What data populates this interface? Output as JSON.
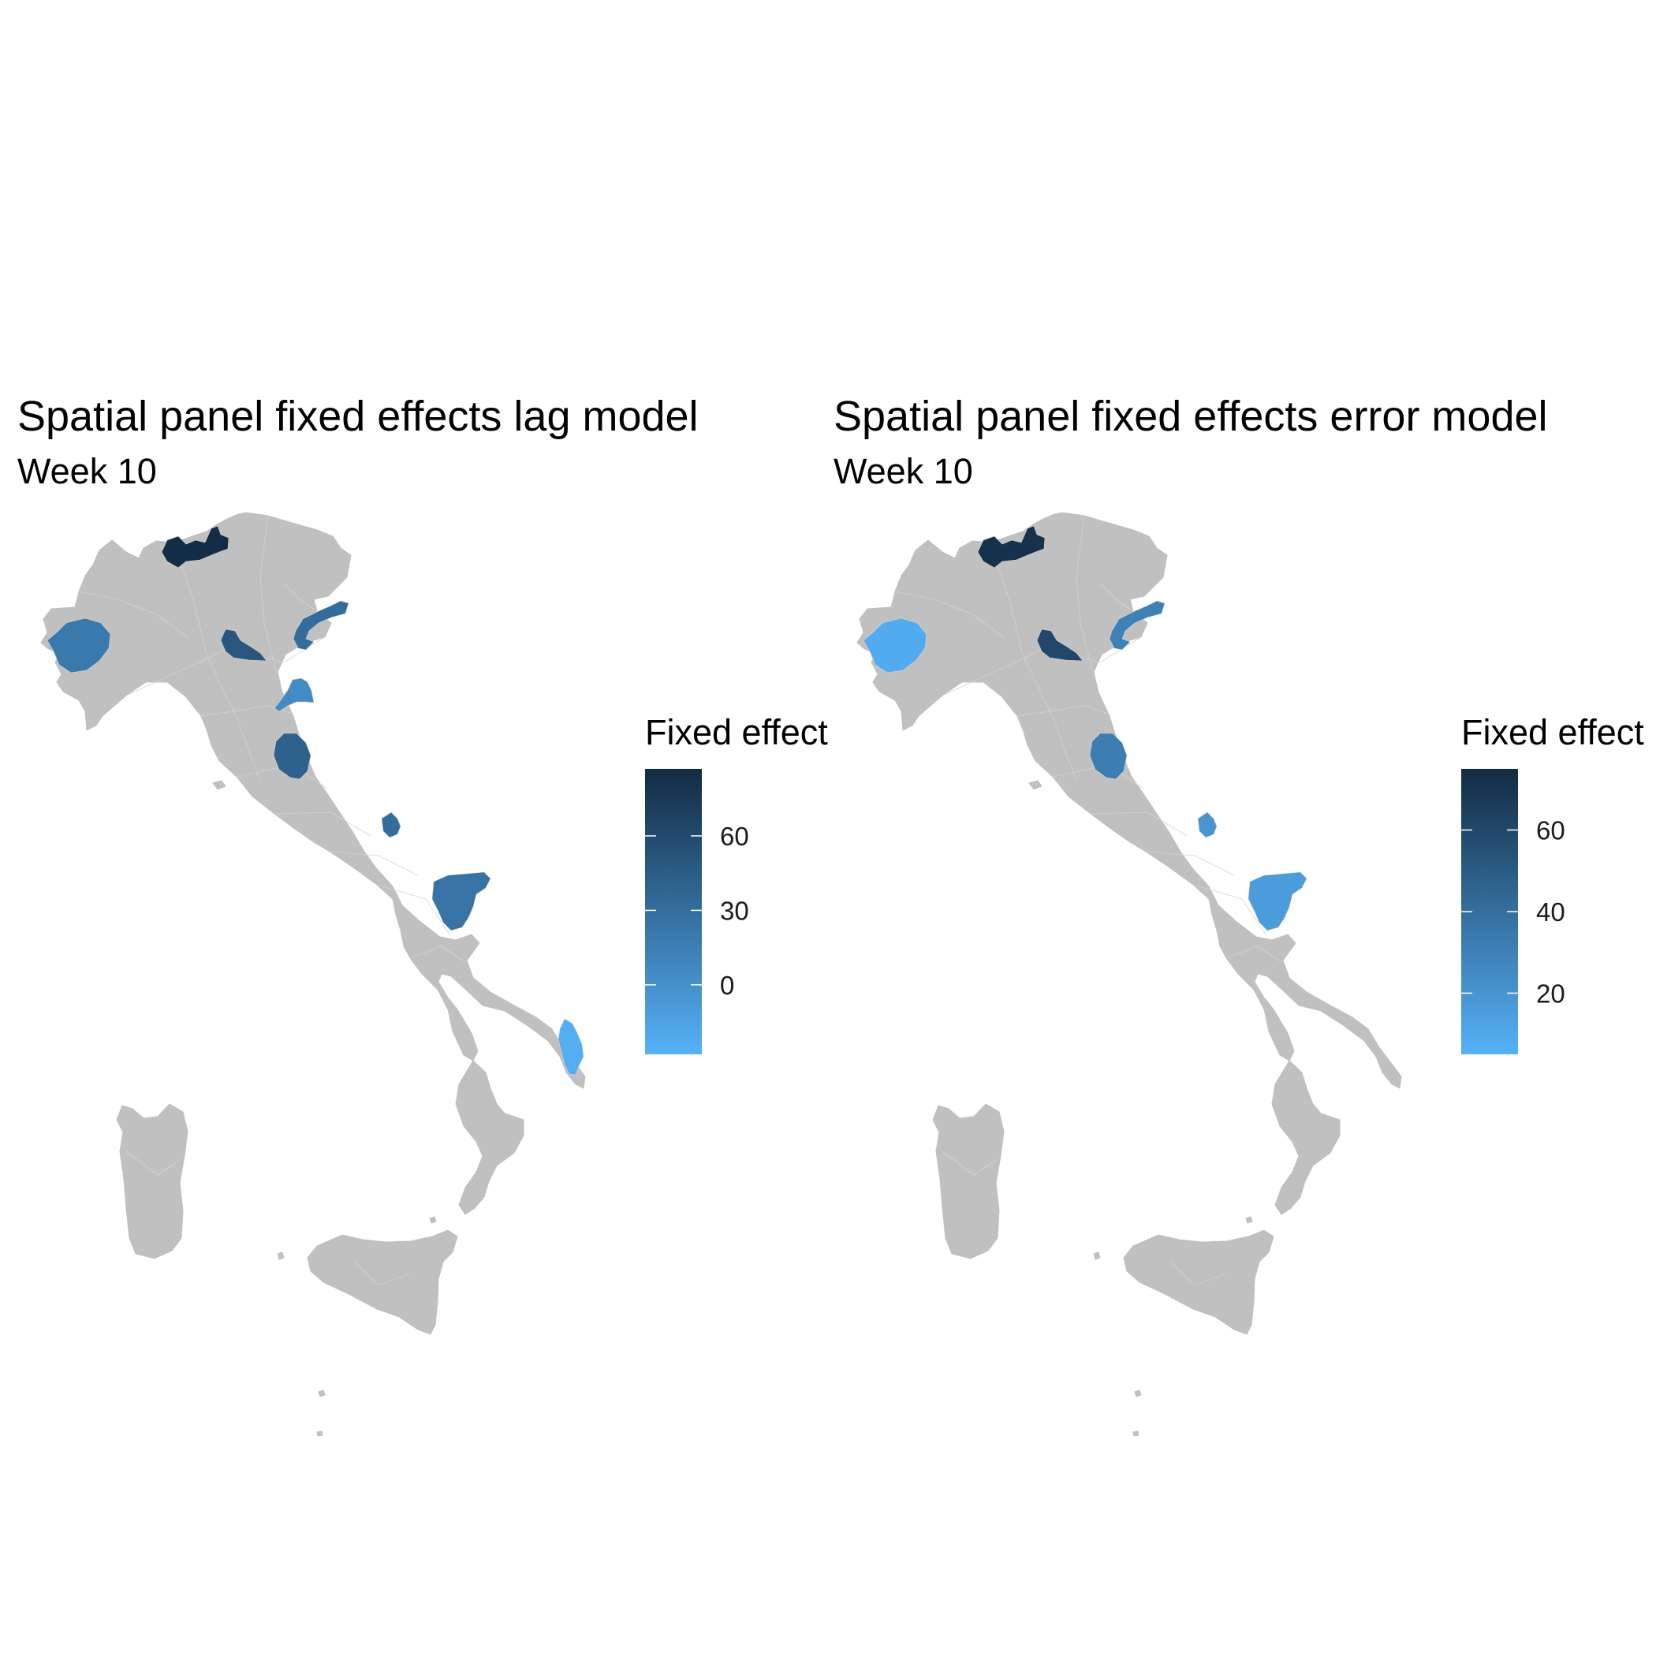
{
  "colors": {
    "background": "#ffffff",
    "land": "#c0c0c0",
    "border": "#d3d3d3",
    "scale_low": "#56b1f7",
    "scale_high": "#132b43"
  },
  "panels": [
    {
      "id": "lag",
      "title": "Spatial panel fixed effects lag model",
      "subtitle": "Week 10",
      "legend": {
        "title": "Fixed effect",
        "range": [
          -28,
          87
        ],
        "ticks": [
          0,
          30,
          60
        ],
        "tick_labels": [
          "0",
          "30",
          "60"
        ]
      },
      "highlighted_regions": [
        {
          "region": "north-lake-province",
          "value": 85
        },
        {
          "region": "north-west-province",
          "value": 20
        },
        {
          "region": "po-valley-province",
          "value": 50
        },
        {
          "region": "north-east-coastal-province",
          "value": 30
        },
        {
          "region": "adriatic-delta-province",
          "value": 5
        },
        {
          "region": "central-inland-province",
          "value": 40
        },
        {
          "region": "central-adriatic-province",
          "value": 30
        },
        {
          "region": "south-east-plain-province",
          "value": 25
        },
        {
          "region": "heel-tip-province",
          "value": -25
        }
      ]
    },
    {
      "id": "error",
      "title": "Spatial panel fixed effects error model",
      "subtitle": "Week 10",
      "legend": {
        "title": "Fixed effect",
        "range": [
          5,
          75
        ],
        "ticks": [
          20,
          40,
          60
        ],
        "tick_labels": [
          "20",
          "40",
          "60"
        ]
      },
      "highlighted_regions": [
        {
          "region": "north-lake-province",
          "value": 72
        },
        {
          "region": "north-west-province",
          "value": 8
        },
        {
          "region": "po-valley-province",
          "value": 60
        },
        {
          "region": "north-east-coastal-province",
          "value": 30
        },
        {
          "region": "central-inland-province",
          "value": 32
        },
        {
          "region": "central-adriatic-province",
          "value": 20
        },
        {
          "region": "south-east-plain-province",
          "value": 16
        }
      ]
    }
  ]
}
